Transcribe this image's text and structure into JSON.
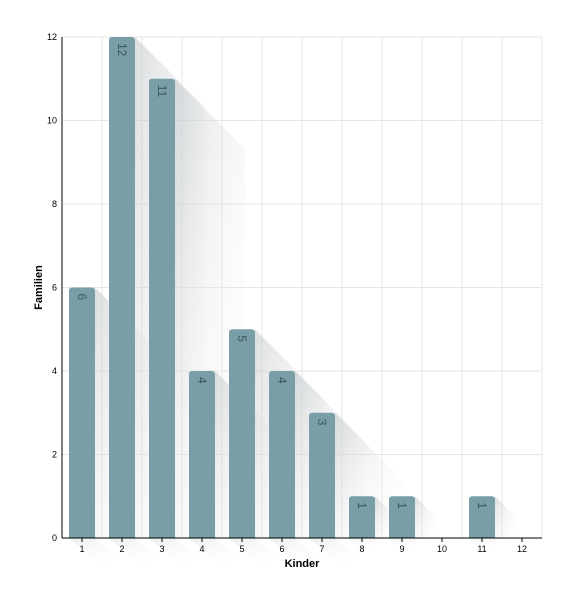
{
  "chart_data": {
    "type": "bar",
    "xlabel": "Kinder",
    "ylabel": "Familien",
    "categories": [
      "1",
      "2",
      "3",
      "4",
      "5",
      "6",
      "7",
      "8",
      "9",
      "10",
      "11",
      "12"
    ],
    "values": [
      6,
      12,
      11,
      4,
      5,
      4,
      3,
      1,
      1,
      0,
      1,
      0
    ],
    "data_labels": [
      "6",
      "12",
      "11",
      "4",
      "5",
      "4",
      "3",
      "1",
      "1",
      "",
      "1",
      ""
    ],
    "ylim": [
      0,
      12
    ],
    "yticks": [
      0,
      2,
      4,
      6,
      8,
      10,
      12
    ],
    "grid": true,
    "legend": "none",
    "colors": {
      "bar": "#7a9ea6",
      "label": "#3f555c",
      "grid": "#e6e6e6",
      "axis": "#000000"
    }
  }
}
